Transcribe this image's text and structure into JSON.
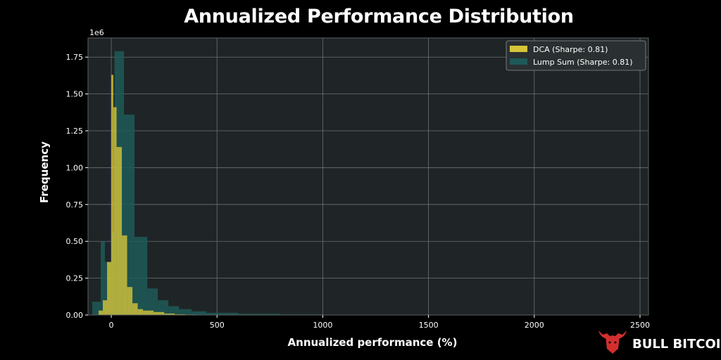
{
  "chart_data": {
    "type": "bar",
    "title": "Annualized Performance Distribution",
    "xlabel": "Annualized performance (%)",
    "ylabel": "Frequency",
    "y_multiplier_label": "1e6",
    "xlim": [
      -110,
      2540
    ],
    "ylim": [
      0,
      1.88
    ],
    "x_ticks": [
      0,
      500,
      1000,
      1500,
      2000,
      2500
    ],
    "y_ticks": [
      0.0,
      0.25,
      0.5,
      0.75,
      1.0,
      1.25,
      1.5,
      1.75
    ],
    "y_tick_labels": [
      "0.00",
      "0.25",
      "0.50",
      "0.75",
      "1.00",
      "1.25",
      "1.50",
      "1.75"
    ],
    "grid": true,
    "legend_position": "top-right",
    "series": [
      {
        "name": "DCA (Sharpe: 0.81)",
        "color": "#d6c53a",
        "bin_edges": [
          -60,
          -40,
          -20,
          0,
          10,
          25,
          50,
          75,
          100,
          125,
          150,
          200,
          250,
          300,
          350,
          400,
          500
        ],
        "values": [
          0.03,
          0.1,
          0.36,
          1.63,
          1.41,
          1.14,
          0.54,
          0.19,
          0.08,
          0.04,
          0.03,
          0.02,
          0.01,
          0.005,
          0.003,
          0.002
        ]
      },
      {
        "name": "Lump Sum (Sharpe: 0.81)",
        "color": "#1f5a58",
        "bin_edges": [
          -90,
          -50,
          -30,
          0,
          15,
          60,
          110,
          170,
          220,
          270,
          320,
          380,
          450,
          600,
          800,
          1000,
          1500,
          2000,
          2450
        ],
        "values": [
          0.09,
          0.5,
          0.36,
          0.56,
          1.79,
          1.36,
          0.53,
          0.18,
          0.1,
          0.06,
          0.04,
          0.025,
          0.015,
          0.008,
          0.004,
          0.002,
          0.001,
          0.0005
        ]
      }
    ]
  },
  "brand": {
    "name": "BULL BITCOIN",
    "color": "#d32f2f",
    "icon": "bull-head-icon"
  }
}
